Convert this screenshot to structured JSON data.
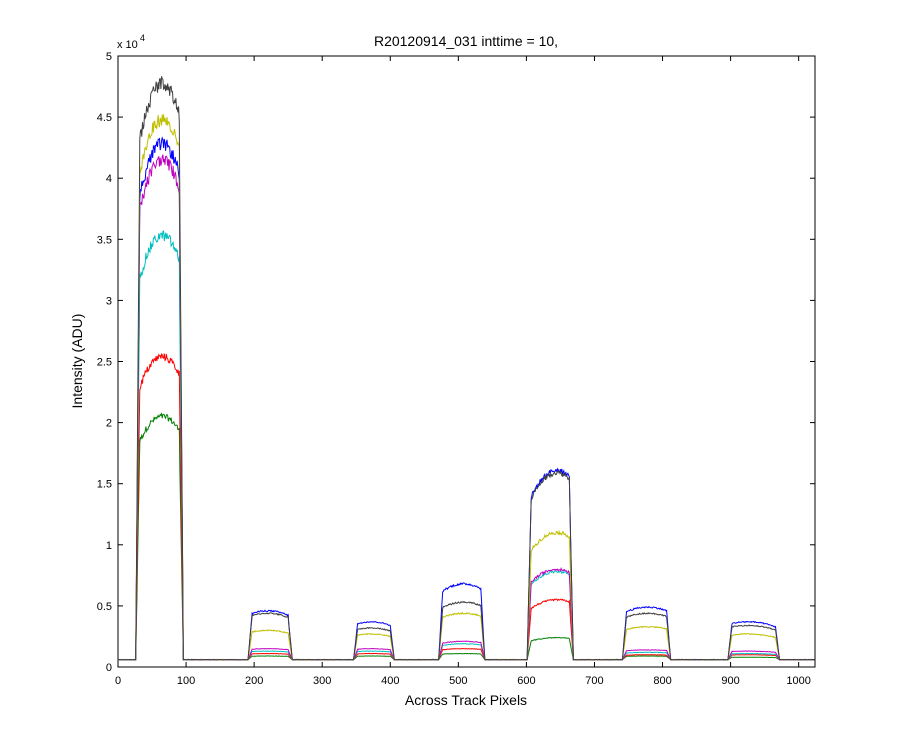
{
  "chart_data": {
    "type": "line",
    "title": "R20120914_031 inttime = 10,",
    "xlabel": "Across Track Pixels",
    "ylabel": "Intensity (ADU)",
    "y_multiplier": "x 10",
    "y_multiplier_exponent": "4",
    "xlim": [
      0,
      1024
    ],
    "ylim": [
      0,
      50000
    ],
    "x_ticks": [
      0,
      100,
      200,
      300,
      400,
      500,
      600,
      700,
      800,
      900,
      1000
    ],
    "x_tick_labels": [
      "0",
      "100",
      "200",
      "300",
      "400",
      "500",
      "600",
      "700",
      "800",
      "900",
      "1000"
    ],
    "y_ticks": [
      0,
      5000,
      10000,
      15000,
      20000,
      25000,
      30000,
      35000,
      40000,
      45000,
      50000
    ],
    "y_tick_labels": [
      "0",
      "0.5",
      "1",
      "1.5",
      "2",
      "2.5",
      "3",
      "3.5",
      "4",
      "4.5",
      "5"
    ],
    "grid": false,
    "legend": "none",
    "baseline": 600,
    "bands": [
      {
        "start": 30,
        "end": 92,
        "peak_at": 65
      },
      {
        "start": 195,
        "end": 252,
        "peak_at": 220
      },
      {
        "start": 350,
        "end": 402,
        "peak_at": 372
      },
      {
        "start": 475,
        "end": 535,
        "peak_at": 508
      },
      {
        "start": 605,
        "end": 665,
        "peak_at": 645
      },
      {
        "start": 745,
        "end": 808,
        "peak_at": 778
      },
      {
        "start": 900,
        "end": 968,
        "peak_at": 925
      }
    ],
    "series": [
      {
        "color": "#404040",
        "peaks": [
          47800,
          4400,
          3200,
          5300,
          15900,
          4400,
          3400
        ]
      },
      {
        "color": "#bfbf00",
        "peaks": [
          44800,
          3000,
          2700,
          4400,
          11000,
          3300,
          2700
        ]
      },
      {
        "color": "#0000ff",
        "peaks": [
          42800,
          4600,
          3700,
          6800,
          16100,
          4900,
          3700
        ]
      },
      {
        "color": "#bf00bf",
        "peaks": [
          41500,
          1500,
          1500,
          2100,
          8000,
          1400,
          1300
        ]
      },
      {
        "color": "#00bfbf",
        "peaks": [
          35300,
          1300,
          1300,
          1900,
          7800,
          1200,
          1100
        ]
      },
      {
        "color": "#ff0000",
        "peaks": [
          25400,
          1100,
          1100,
          1500,
          5500,
          1000,
          1000
        ]
      },
      {
        "color": "#008000",
        "peaks": [
          20500,
          900,
          900,
          1100,
          2400,
          900,
          800
        ]
      }
    ]
  }
}
